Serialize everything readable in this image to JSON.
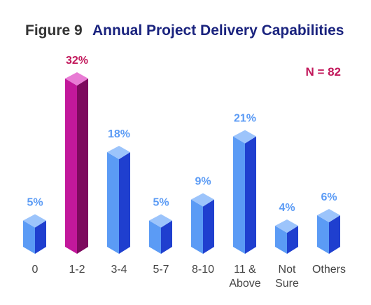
{
  "chart_data": {
    "type": "bar",
    "figure_label": "Figure 9",
    "title": "Annual Project Delivery Capabilities",
    "annotation": "N = 82",
    "categories": [
      "0",
      "1-2",
      "3-4",
      "5-7",
      "8-10",
      "11 & Above",
      "Not Sure",
      "Others"
    ],
    "category_lines": [
      [
        "0"
      ],
      [
        "1-2"
      ],
      [
        "3-4"
      ],
      [
        "5-7"
      ],
      [
        "8-10"
      ],
      [
        "11 &",
        "Above"
      ],
      [
        "Not",
        "Sure"
      ],
      [
        "Others"
      ]
    ],
    "values": [
      5,
      32,
      18,
      5,
      9,
      21,
      4,
      6
    ],
    "value_labels": [
      "5%",
      "32%",
      "18%",
      "5%",
      "9%",
      "21%",
      "4%",
      "6%"
    ],
    "highlight_index": 1,
    "ylim": [
      0,
      32
    ],
    "grid": false,
    "legend": "none",
    "colors": {
      "bar_front": "#5b9bf5",
      "bar_side": "#1f3fcf",
      "bar_top": "#9cc4fb",
      "highlight_front": "#c2189b",
      "highlight_side": "#7d0a5e",
      "highlight_top": "#e87bd4",
      "value_text": "#5b9bf5",
      "highlight_text": "#c2185b",
      "title_text": "#1a237e",
      "figure_text": "#333333",
      "annotation_text": "#c2185b"
    }
  }
}
